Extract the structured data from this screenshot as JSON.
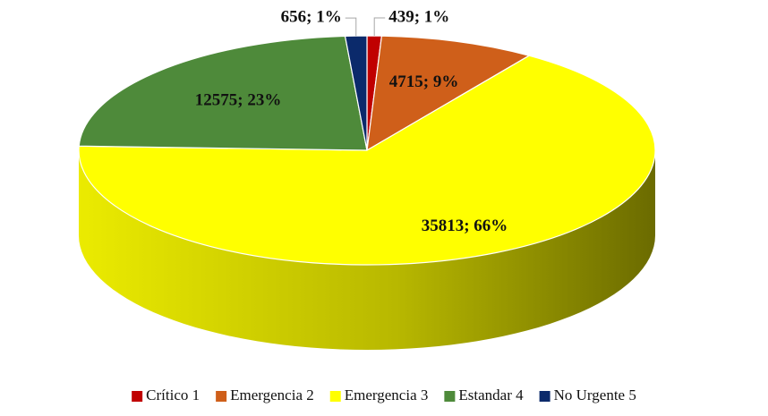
{
  "chart_data": {
    "type": "pie",
    "categories": [
      "Crítico 1",
      "Emergencia 2",
      "Emergencia 3",
      "Estandar 4",
      "No Urgente 5"
    ],
    "values": [
      439,
      4715,
      35813,
      12575,
      656
    ],
    "value_labels": [
      "439; 1%",
      "4715; 9%",
      "35813; 66%",
      "12575; 23%",
      "656; 1%"
    ],
    "colors": [
      "#c00000",
      "#cf5f1a",
      "#ffff00",
      "#4e8a3a",
      "#0b2a6b"
    ],
    "legend": "bottom"
  }
}
